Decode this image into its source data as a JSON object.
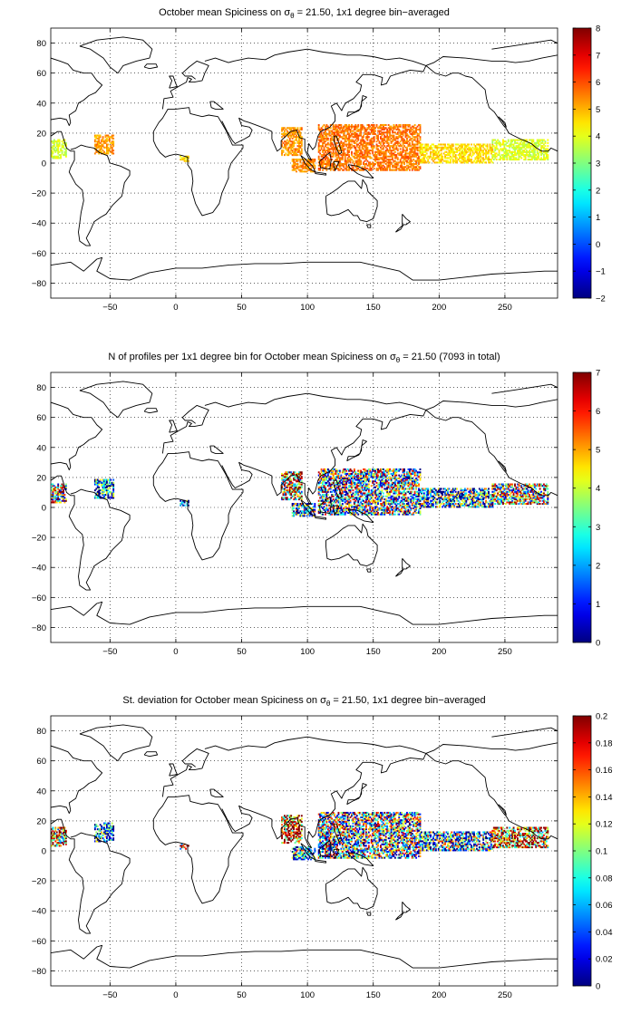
{
  "figure": {
    "panels": [
      {
        "id": "mean",
        "title_pre": "October mean Spiciness on σ",
        "title_sub": "θ",
        "title_post": " = 21.50, 1x1 degree bin−averaged",
        "colorbar_ticks": [
          "8",
          "7",
          "6",
          "5",
          "4",
          "3",
          "2",
          "1",
          "0",
          "−1",
          "−2"
        ]
      },
      {
        "id": "count",
        "title_pre": "N of profiles per 1x1 degree bin for October mean Spiciness on σ",
        "title_sub": "θ",
        "title_post": " = 21.50 (7093 in total)",
        "colorbar_ticks": [
          "7",
          "6",
          "5",
          "4",
          "3",
          "2",
          "1",
          "0"
        ]
      },
      {
        "id": "std",
        "title_pre": "St. deviation for October mean Spiciness on σ",
        "title_sub": "θ",
        "title_post": " = 21.50, 1x1 degree bin−averaged",
        "colorbar_ticks": [
          "0.2",
          "0.18",
          "0.16",
          "0.14",
          "0.12",
          "0.1",
          "0.08",
          "0.06",
          "0.04",
          "0.02",
          "0"
        ]
      }
    ],
    "x_ticks": [
      "−50",
      "0",
      "50",
      "100",
      "150",
      "200",
      "250"
    ],
    "y_ticks": [
      "80",
      "60",
      "40",
      "20",
      "0",
      "−20",
      "−40",
      "−60",
      "−80"
    ]
  },
  "chart_data": [
    {
      "type": "heatmap",
      "title": "October mean Spiciness on σθ = 21.50, 1x1 degree bin−averaged",
      "xlim": [
        -95,
        290
      ],
      "ylim": [
        -90,
        90
      ],
      "clim": [
        -2,
        8
      ],
      "colormap": "jet",
      "grid": true,
      "regions": [
        {
          "name": "eastern tropical Pacific (west of Americas)",
          "lon": [
            -95,
            -84
          ],
          "lat": [
            3,
            15
          ],
          "value": 3.8
        },
        {
          "name": "Caribbean / Atlantic",
          "lon": [
            -62,
            -48
          ],
          "lat": [
            6,
            18
          ],
          "value": 5.2
        },
        {
          "name": "Gulf of Guinea",
          "lon": [
            3,
            9
          ],
          "lat": [
            1,
            4
          ],
          "value": 4.5
        },
        {
          "name": "Bay of Bengal",
          "lon": [
            80,
            95
          ],
          "lat": [
            5,
            23
          ],
          "value": 5.3
        },
        {
          "name": "Indian Ocean south of Sumatra",
          "lon": [
            88,
            105
          ],
          "lat": [
            -6,
            2
          ],
          "value": 5.4
        },
        {
          "name": "western Pacific warm pool",
          "lon": [
            108,
            185
          ],
          "lat": [
            -5,
            25
          ],
          "value": 5.6
        },
        {
          "name": "central Pacific band",
          "lon": [
            185,
            240
          ],
          "lat": [
            0,
            12
          ],
          "value": 4.6
        },
        {
          "name": "eastern Pacific band",
          "lon": [
            240,
            282
          ],
          "lat": [
            2,
            15
          ],
          "value": 3.9
        }
      ]
    },
    {
      "type": "heatmap",
      "title": "N of profiles per 1x1 degree bin for October mean Spiciness on σθ = 21.50 (7093 in total)",
      "xlim": [
        -95,
        290
      ],
      "ylim": [
        -90,
        90
      ],
      "clim": [
        0,
        7
      ],
      "colormap": "jet",
      "grid": true,
      "total_profiles": 7093,
      "regions": [
        {
          "name": "eastern tropical Pacific (west of Americas)",
          "lon": [
            -95,
            -84
          ],
          "lat": [
            3,
            15
          ],
          "value": 4
        },
        {
          "name": "Caribbean / Atlantic",
          "lon": [
            -62,
            -48
          ],
          "lat": [
            6,
            18
          ],
          "value": 1
        },
        {
          "name": "Gulf of Guinea",
          "lon": [
            3,
            9
          ],
          "lat": [
            1,
            4
          ],
          "value": 1
        },
        {
          "name": "Bay of Bengal",
          "lon": [
            80,
            95
          ],
          "lat": [
            5,
            23
          ],
          "value": 5
        },
        {
          "name": "Indian Ocean south of Sumatra",
          "lon": [
            88,
            105
          ],
          "lat": [
            -6,
            2
          ],
          "value": 2
        },
        {
          "name": "western Pacific warm pool",
          "lon": [
            108,
            185
          ],
          "lat": [
            -5,
            25
          ],
          "value": 3
        },
        {
          "name": "central Pacific band",
          "lon": [
            185,
            240
          ],
          "lat": [
            0,
            12
          ],
          "value": 2
        },
        {
          "name": "eastern Pacific band",
          "lon": [
            240,
            282
          ],
          "lat": [
            2,
            15
          ],
          "value": 4
        }
      ]
    },
    {
      "type": "heatmap",
      "title": "St. deviation for October mean Spiciness on σθ = 21.50, 1x1 degree bin−averaged",
      "xlim": [
        -95,
        290
      ],
      "ylim": [
        -90,
        90
      ],
      "clim": [
        0,
        0.2
      ],
      "colormap": "jet",
      "grid": true,
      "regions": [
        {
          "name": "eastern tropical Pacific (west of Americas)",
          "lon": [
            -95,
            -84
          ],
          "lat": [
            3,
            15
          ],
          "value": 0.14
        },
        {
          "name": "Caribbean / Atlantic",
          "lon": [
            -62,
            -48
          ],
          "lat": [
            6,
            18
          ],
          "value": 0.03
        },
        {
          "name": "Gulf of Guinea",
          "lon": [
            3,
            9
          ],
          "lat": [
            1,
            4
          ],
          "value": 0.15
        },
        {
          "name": "Bay of Bengal",
          "lon": [
            80,
            95
          ],
          "lat": [
            5,
            23
          ],
          "value": 0.18
        },
        {
          "name": "Indian Ocean south of Sumatra",
          "lon": [
            88,
            105
          ],
          "lat": [
            -6,
            2
          ],
          "value": 0.05
        },
        {
          "name": "western Pacific warm pool",
          "lon": [
            108,
            185
          ],
          "lat": [
            -5,
            25
          ],
          "value": 0.09
        },
        {
          "name": "central Pacific band",
          "lon": [
            185,
            240
          ],
          "lat": [
            0,
            12
          ],
          "value": 0.06
        },
        {
          "name": "eastern Pacific band",
          "lon": [
            240,
            282
          ],
          "lat": [
            2,
            15
          ],
          "value": 0.16
        }
      ]
    }
  ]
}
